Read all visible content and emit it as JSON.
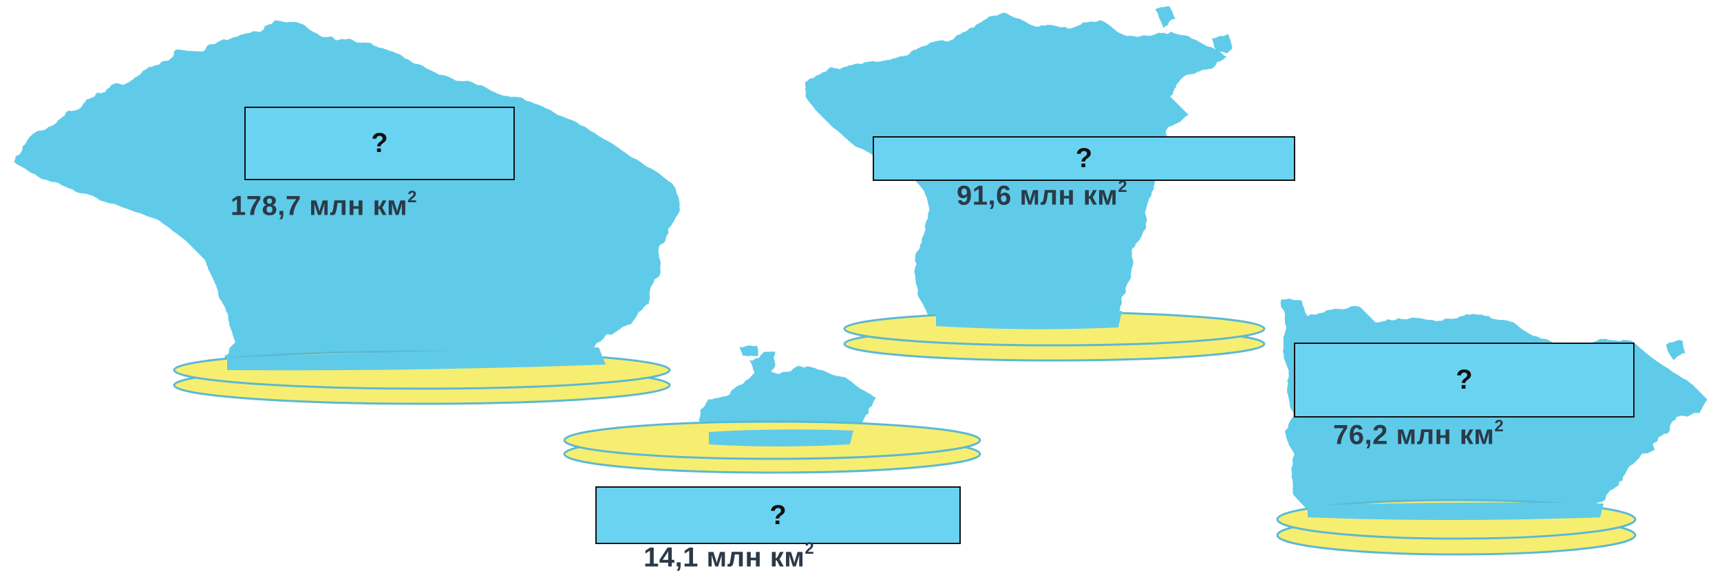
{
  "colors": {
    "water": "#5fcbe9",
    "water_dark": "#4fb7d6",
    "pedestal_fill": "#f6ee70",
    "pedestal_edge": "#5bb8d4",
    "box_fill": "#6bd3f2",
    "box_border": "#111111",
    "label_text": "#2b3a48",
    "background": "#ffffff"
  },
  "oceans": [
    {
      "id": "ocean-1",
      "answer_placeholder": "?",
      "area_value": "178,7",
      "area_unit": "млн км",
      "area_exponent": "2"
    },
    {
      "id": "ocean-2",
      "answer_placeholder": "?",
      "area_value": "91,6",
      "area_unit": "млн км",
      "area_exponent": "2"
    },
    {
      "id": "ocean-3",
      "answer_placeholder": "?",
      "area_value": "14,1",
      "area_unit": "млн км",
      "area_exponent": "2"
    },
    {
      "id": "ocean-4",
      "answer_placeholder": "?",
      "area_value": "76,2",
      "area_unit": "млн км",
      "area_exponent": "2"
    }
  ]
}
